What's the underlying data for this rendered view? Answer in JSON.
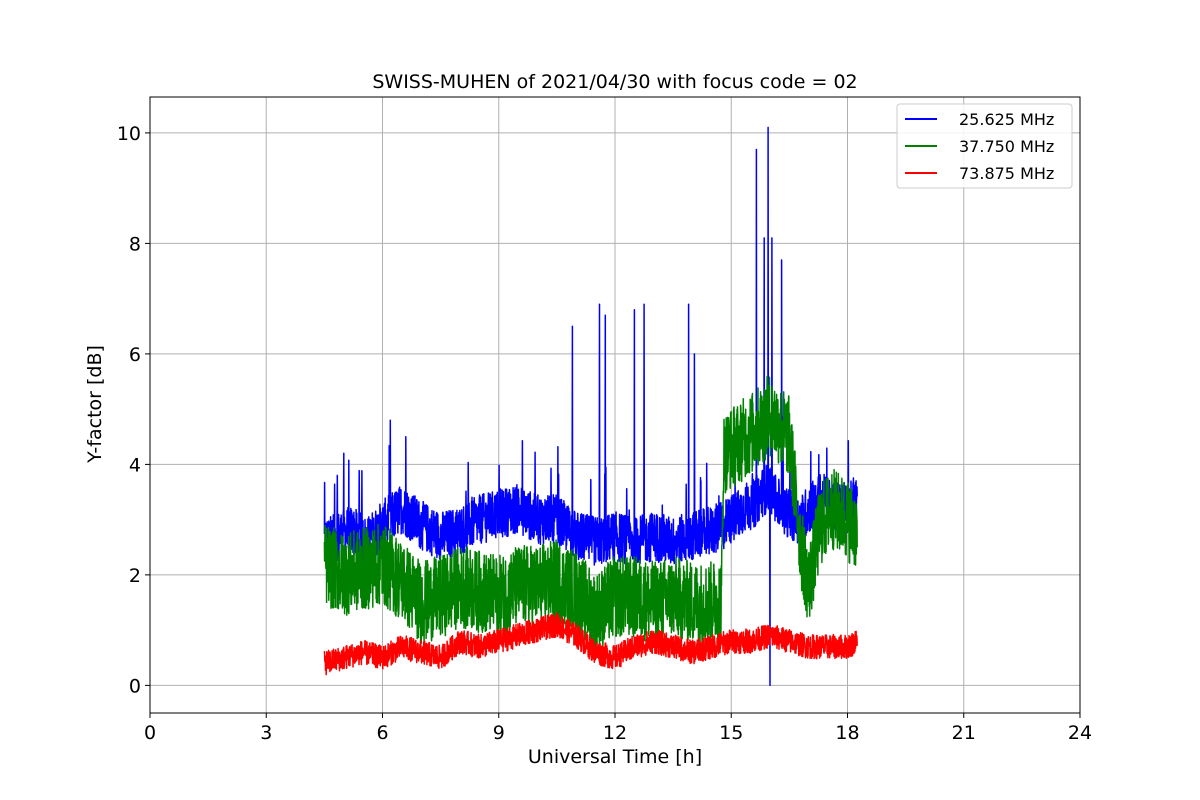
{
  "chart_data": {
    "type": "line",
    "title": "SWISS-MUHEN of 2021/04/30 with focus code = 02",
    "xlabel": "Universal Time [h]",
    "ylabel": "Y-factor [dB]",
    "xlim": [
      0,
      24
    ],
    "ylim": [
      -0.5,
      10.65
    ],
    "xticks": [
      0,
      3,
      6,
      9,
      12,
      15,
      18,
      21,
      24
    ],
    "xtick_labels": [
      "0",
      "3",
      "6",
      "9",
      "12",
      "15",
      "18",
      "21",
      "24"
    ],
    "yticks": [
      0,
      2,
      4,
      6,
      8,
      10
    ],
    "ytick_labels": [
      "0",
      "2",
      "4",
      "6",
      "8",
      "10"
    ],
    "grid": true,
    "legend_position": "top-right",
    "series": [
      {
        "name": "25.625 MHz",
        "color": "#0000ff",
        "x": [
          4.5,
          4.8,
          5.2,
          5.6,
          6.0,
          6.5,
          7.0,
          7.5,
          8.0,
          8.5,
          9.0,
          9.5,
          10.0,
          10.5,
          11.0,
          11.5,
          12.0,
          12.5,
          13.0,
          13.5,
          14.0,
          14.5,
          14.8,
          15.0,
          15.3,
          15.6,
          15.8,
          16.0,
          16.2,
          16.5,
          16.8,
          17.0,
          17.3,
          17.6,
          18.0,
          18.25
        ],
        "values": [
          2.6,
          2.7,
          2.8,
          2.6,
          2.9,
          3.2,
          2.9,
          2.7,
          2.8,
          3.0,
          3.1,
          3.2,
          3.0,
          3.0,
          2.7,
          2.6,
          2.7,
          2.6,
          2.7,
          2.6,
          2.7,
          2.8,
          2.9,
          3.0,
          3.2,
          3.3,
          3.5,
          3.6,
          3.3,
          3.1,
          3.0,
          3.2,
          3.4,
          3.3,
          3.2,
          3.4
        ],
        "spikes": [
          {
            "x": 5.0,
            "y": 4.2
          },
          {
            "x": 6.2,
            "y": 4.8
          },
          {
            "x": 6.6,
            "y": 4.5
          },
          {
            "x": 10.9,
            "y": 6.5
          },
          {
            "x": 11.6,
            "y": 6.9
          },
          {
            "x": 11.75,
            "y": 6.7
          },
          {
            "x": 12.5,
            "y": 6.8
          },
          {
            "x": 12.75,
            "y": 6.9
          },
          {
            "x": 13.9,
            "y": 6.9
          },
          {
            "x": 14.05,
            "y": 6.0
          },
          {
            "x": 15.65,
            "y": 9.7
          },
          {
            "x": 15.85,
            "y": 8.1
          },
          {
            "x": 15.95,
            "y": 10.1
          },
          {
            "x": 16.05,
            "y": 8.1
          },
          {
            "x": 16.3,
            "y": 7.7
          },
          {
            "x": 16.0,
            "y": 0.0
          }
        ]
      },
      {
        "name": "37.750 MHz",
        "color": "#008000",
        "x": [
          4.5,
          5.0,
          5.5,
          6.0,
          6.5,
          7.0,
          7.5,
          8.0,
          8.5,
          9.0,
          9.5,
          10.0,
          10.5,
          11.0,
          11.5,
          12.0,
          12.5,
          13.0,
          13.5,
          14.0,
          14.5,
          14.75,
          14.8,
          15.2,
          15.6,
          16.0,
          16.5,
          16.8,
          17.0,
          17.3,
          17.6,
          18.0,
          18.25
        ],
        "values": [
          2.2,
          2.0,
          2.1,
          2.2,
          1.9,
          1.5,
          1.6,
          1.8,
          1.7,
          1.6,
          1.8,
          1.8,
          1.9,
          1.7,
          1.3,
          1.6,
          1.6,
          1.5,
          1.6,
          1.5,
          1.5,
          1.6,
          4.2,
          4.4,
          4.6,
          4.9,
          4.5,
          2.5,
          1.8,
          2.9,
          3.2,
          3.0,
          2.8
        ],
        "spikes": []
      },
      {
        "name": "73.875 MHz",
        "color": "#ff0000",
        "x": [
          4.5,
          5.0,
          5.5,
          6.0,
          6.5,
          7.0,
          7.5,
          8.0,
          8.5,
          9.0,
          9.5,
          10.0,
          10.5,
          11.0,
          11.5,
          12.0,
          12.5,
          13.0,
          13.5,
          14.0,
          14.5,
          15.0,
          15.5,
          16.0,
          16.5,
          17.0,
          17.5,
          18.0,
          18.25
        ],
        "values": [
          0.4,
          0.5,
          0.6,
          0.5,
          0.7,
          0.6,
          0.5,
          0.8,
          0.7,
          0.8,
          0.9,
          1.0,
          1.1,
          0.9,
          0.6,
          0.5,
          0.7,
          0.8,
          0.7,
          0.6,
          0.7,
          0.8,
          0.8,
          0.9,
          0.8,
          0.7,
          0.7,
          0.7,
          0.8
        ],
        "spikes": []
      }
    ]
  }
}
